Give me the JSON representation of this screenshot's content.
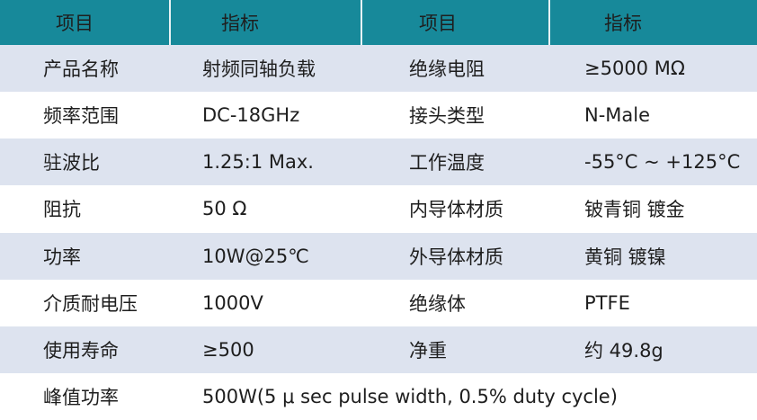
{
  "table": {
    "header": [
      "项目",
      "指标",
      "项目",
      "指标"
    ],
    "rows": [
      [
        "产品名称",
        "射频同轴负载",
        "绝缘电阻",
        "≥5000 MΩ"
      ],
      [
        "频率范围",
        "DC-18GHz",
        "接头类型",
        "N-Male"
      ],
      [
        "驻波比",
        "1.25:1 Max.",
        "工作温度",
        "-55°C ~ +125°C"
      ],
      [
        "阻抗",
        "50 Ω",
        "内导体材质",
        "铍青铜 镀金"
      ],
      [
        "功率",
        "10W@25℃",
        "外导体材质",
        "黄铜 镀镍"
      ],
      [
        "介质耐电压",
        "1000V",
        "绝缘体",
        "PTFE"
      ],
      [
        "使用寿命",
        "≥500",
        "净重",
        "约 49.8g"
      ],
      [
        "峰值功率",
        "500W(5 μ sec pulse width, 0.5% duty cycle)"
      ]
    ]
  }
}
